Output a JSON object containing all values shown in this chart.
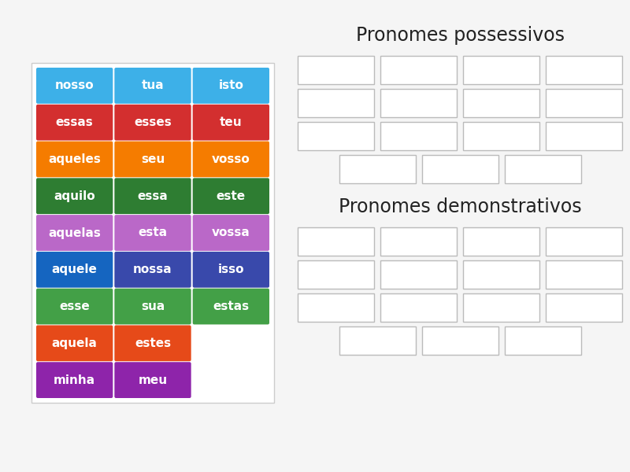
{
  "bg_color": "#f5f5f5",
  "left_panel_bg": "#ffffff",
  "left_panel_border": "#cccccc",
  "words": [
    {
      "text": "nosso",
      "col": 0,
      "row": 0,
      "color": "#3db0e8"
    },
    {
      "text": "tua",
      "col": 1,
      "row": 0,
      "color": "#3db0e8"
    },
    {
      "text": "isto",
      "col": 2,
      "row": 0,
      "color": "#3db0e8"
    },
    {
      "text": "essas",
      "col": 0,
      "row": 1,
      "color": "#d32f2f"
    },
    {
      "text": "esses",
      "col": 1,
      "row": 1,
      "color": "#d32f2f"
    },
    {
      "text": "teu",
      "col": 2,
      "row": 1,
      "color": "#d32f2f"
    },
    {
      "text": "aqueles",
      "col": 0,
      "row": 2,
      "color": "#f57c00"
    },
    {
      "text": "seu",
      "col": 1,
      "row": 2,
      "color": "#f57c00"
    },
    {
      "text": "vosso",
      "col": 2,
      "row": 2,
      "color": "#f57c00"
    },
    {
      "text": "aquilo",
      "col": 0,
      "row": 3,
      "color": "#2e7d32"
    },
    {
      "text": "essa",
      "col": 1,
      "row": 3,
      "color": "#2e7d32"
    },
    {
      "text": "este",
      "col": 2,
      "row": 3,
      "color": "#2e7d32"
    },
    {
      "text": "aquelas",
      "col": 0,
      "row": 4,
      "color": "#ba68c8"
    },
    {
      "text": "esta",
      "col": 1,
      "row": 4,
      "color": "#ba68c8"
    },
    {
      "text": "vossa",
      "col": 2,
      "row": 4,
      "color": "#ba68c8"
    },
    {
      "text": "aquele",
      "col": 0,
      "row": 5,
      "color": "#1565c0"
    },
    {
      "text": "nossa",
      "col": 1,
      "row": 5,
      "color": "#3949ab"
    },
    {
      "text": "isso",
      "col": 2,
      "row": 5,
      "color": "#3949ab"
    },
    {
      "text": "esse",
      "col": 0,
      "row": 6,
      "color": "#43a047"
    },
    {
      "text": "sua",
      "col": 1,
      "row": 6,
      "color": "#43a047"
    },
    {
      "text": "estas",
      "col": 2,
      "row": 6,
      "color": "#43a047"
    },
    {
      "text": "aquela",
      "col": 0,
      "row": 7,
      "color": "#e64a19"
    },
    {
      "text": "estes",
      "col": 1,
      "row": 7,
      "color": "#e64a19"
    },
    {
      "text": "minha",
      "col": 0,
      "row": 8,
      "color": "#8e24aa"
    },
    {
      "text": "meu",
      "col": 1,
      "row": 8,
      "color": "#8e24aa"
    }
  ],
  "title_possessivos": "Pronomes possessivos",
  "title_demonstrativos": "Pronomes demonstrativos",
  "title_fontsize": 17,
  "poss_rows_cols": [
    4,
    4,
    4,
    3
  ],
  "demo_rows_cols": [
    4,
    4,
    4,
    3
  ],
  "box_color": "#ffffff",
  "box_edge_color": "#bbbbbb",
  "word_fontsize": 11
}
